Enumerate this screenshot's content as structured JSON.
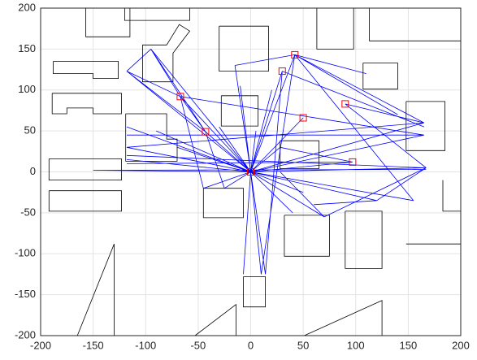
{
  "chart_data": {
    "type": "line",
    "xlim": [
      -200,
      200
    ],
    "ylim": [
      -200,
      200
    ],
    "xticks": [
      -200,
      -150,
      -100,
      -50,
      0,
      50,
      100,
      150,
      200
    ],
    "yticks": [
      -200,
      -150,
      -100,
      -50,
      0,
      50,
      100,
      150,
      200
    ],
    "grid": true,
    "series": [
      {
        "color": "#000000",
        "x": [
          -157,
          -157,
          -115,
          -115,
          null,
          -188,
          -126,
          -126,
          -150,
          -150,
          -188,
          -188,
          null,
          -189,
          -123,
          -123,
          -150,
          -150,
          -175,
          -175,
          -189,
          -189,
          null,
          -103,
          -80,
          -68,
          -58,
          -74,
          -74,
          -103,
          -103,
          null,
          -119,
          -80,
          -80,
          -70,
          -70,
          -119,
          -119,
          null,
          -28,
          7,
          7,
          -28,
          -28,
          null,
          -30,
          17,
          17,
          -30,
          -30,
          null,
          28,
          65,
          65,
          28,
          28,
          null,
          -45,
          -7,
          -7,
          -45,
          -45,
          null,
          -7,
          14,
          14,
          -7,
          -7,
          null,
          148,
          185,
          185,
          148,
          148,
          null,
          107,
          140,
          140,
          107,
          107,
          null,
          -192,
          -123,
          -123,
          -192,
          -192,
          null,
          -192,
          -123,
          -123,
          -192,
          -192,
          null,
          90,
          125,
          125,
          90,
          90,
          null,
          32,
          75,
          75,
          32,
          32,
          null,
          -53,
          -14,
          -14,
          null,
          51,
          125,
          125,
          null,
          148,
          200,
          null,
          113,
          113,
          200,
          null,
          63,
          63,
          98,
          98,
          null,
          183,
          183,
          200,
          null,
          -165,
          -130,
          -130,
          null,
          -120,
          -120,
          -58,
          -58
        ],
        "values": [
          200,
          165,
          165,
          200,
          null,
          135,
          135,
          114,
          114,
          120,
          120,
          135,
          null,
          96,
          96,
          71,
          71,
          78,
          78,
          71,
          71,
          96,
          null,
          155,
          155,
          180,
          172,
          145,
          110,
          110,
          155,
          null,
          71,
          71,
          40,
          40,
          13,
          13,
          71,
          null,
          93,
          93,
          56,
          56,
          93,
          null,
          178,
          178,
          123,
          123,
          178,
          null,
          38,
          38,
          4,
          4,
          38,
          null,
          -20,
          -20,
          -56,
          -56,
          -20,
          null,
          -128,
          -128,
          -165,
          -165,
          -128,
          null,
          86,
          86,
          26,
          26,
          86,
          null,
          133,
          133,
          101,
          101,
          133,
          null,
          16,
          16,
          -10,
          -10,
          16,
          null,
          -23,
          -23,
          -48,
          -48,
          -23,
          null,
          -48,
          -48,
          -118,
          -118,
          -48,
          null,
          -53,
          -53,
          -103,
          -103,
          -53,
          null,
          -200,
          -162,
          -200,
          null,
          -200,
          -157,
          -200,
          null,
          -88,
          -88,
          null,
          200,
          160,
          160,
          null,
          200,
          150,
          150,
          200,
          null,
          -10,
          -48,
          -48,
          null,
          -200,
          -88,
          -200,
          null,
          200,
          185,
          185,
          200
        ]
      },
      {
        "color": "#0000ff",
        "x": [
          0,
          -95,
          null,
          0,
          -118,
          null,
          0,
          -67,
          null,
          0,
          -43,
          null,
          0,
          30,
          null,
          0,
          42,
          null,
          0,
          50,
          null,
          0,
          97,
          null,
          0,
          167,
          null,
          0,
          165,
          null,
          0,
          165,
          null,
          0,
          -118,
          null,
          0,
          -118,
          null,
          0,
          -118,
          null,
          0,
          -150,
          null,
          0,
          -45,
          null,
          0,
          -25,
          null,
          0,
          10,
          null,
          0,
          -7,
          null,
          0,
          14,
          null,
          0,
          70,
          null,
          0,
          120,
          null,
          0,
          155,
          null,
          0,
          -15,
          null,
          0,
          -10,
          null,
          0,
          20,
          null,
          0,
          5,
          null,
          0,
          28,
          null,
          0,
          -30,
          null,
          0,
          -40,
          null,
          0,
          -70,
          null,
          0,
          -90,
          null,
          0,
          40,
          null,
          0,
          50,
          null,
          -118,
          -95,
          null,
          -95,
          -67,
          null,
          -118,
          -43,
          null,
          -95,
          -43,
          null,
          -118,
          -67,
          null,
          -67,
          165,
          null,
          -67,
          -43,
          null,
          -15,
          42,
          null,
          42,
          165,
          null,
          30,
          165,
          null,
          42,
          140,
          null,
          90,
          165,
          null,
          90,
          167,
          null,
          -118,
          165,
          null,
          -118,
          165,
          null,
          -118,
          165,
          null,
          -118,
          97,
          null,
          -150,
          167,
          null,
          60,
          120,
          null,
          28,
          97,
          null,
          42,
          10,
          null,
          30,
          14,
          null,
          42,
          155,
          null,
          70,
          167,
          null,
          120,
          167,
          null,
          28,
          70,
          null,
          -25,
          -43,
          null,
          -45,
          -67,
          null,
          42,
          110
        ],
        "values": [
          0,
          150,
          null,
          0,
          123,
          null,
          0,
          92,
          null,
          0,
          49,
          null,
          0,
          123,
          null,
          0,
          143,
          null,
          0,
          66,
          null,
          0,
          12,
          null,
          0,
          5,
          null,
          0,
          45,
          null,
          0,
          60,
          null,
          0,
          30,
          null,
          0,
          55,
          null,
          0,
          15,
          null,
          0,
          2,
          null,
          0,
          -20,
          null,
          0,
          -20,
          null,
          0,
          -125,
          null,
          0,
          -125,
          null,
          0,
          -125,
          null,
          0,
          -55,
          null,
          0,
          -35,
          null,
          0,
          -35,
          null,
          0,
          130,
          null,
          0,
          105,
          null,
          0,
          100,
          null,
          0,
          50,
          null,
          0,
          30,
          null,
          0,
          55,
          null,
          0,
          63,
          null,
          0,
          30,
          null,
          0,
          50,
          null,
          0,
          -50,
          null,
          0,
          -25,
          null,
          123,
          150,
          null,
          150,
          92,
          null,
          123,
          49,
          null,
          150,
          49,
          null,
          123,
          92,
          null,
          92,
          45,
          null,
          92,
          49,
          null,
          130,
          143,
          null,
          143,
          60,
          null,
          123,
          55,
          null,
          143,
          70,
          null,
          83,
          60,
          null,
          83,
          5,
          null,
          30,
          60,
          null,
          45,
          45,
          null,
          20,
          5,
          null,
          10,
          12,
          null,
          2,
          3,
          null,
          -40,
          -35,
          null,
          30,
          12,
          null,
          143,
          -125,
          null,
          123,
          -125,
          null,
          143,
          -35,
          null,
          -55,
          5,
          null,
          -35,
          5,
          null,
          0,
          -55,
          null,
          -20,
          49,
          null,
          -20,
          92,
          null,
          143,
          120
        ]
      },
      {
        "color": "#ff0000",
        "marker": "square",
        "x": [
          -67,
          -43,
          30,
          42,
          50,
          90,
          97,
          0
        ],
        "values": [
          92,
          49,
          123,
          143,
          66,
          83,
          12,
          0
        ]
      }
    ]
  }
}
